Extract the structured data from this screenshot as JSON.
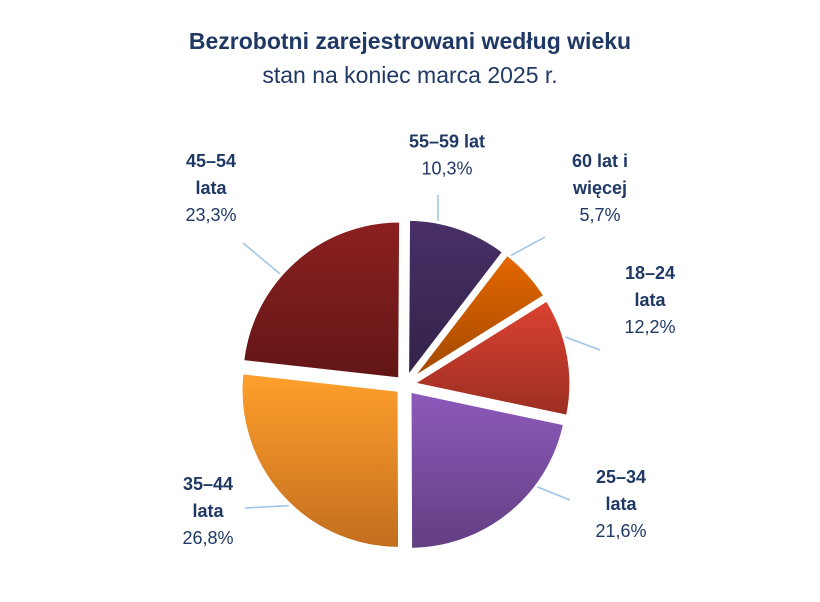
{
  "chart_data": {
    "type": "pie",
    "title": "Bezrobotni zarejestrowani według wieku",
    "subtitle": "stan na koniec marca 2025 r.",
    "slices": [
      {
        "name": "18–24 lata",
        "label_lines": [
          "18–24",
          "lata"
        ],
        "value": 12.2,
        "value_label": "12,2%",
        "color": "#c0392b"
      },
      {
        "name": "25–34 lata",
        "label_lines": [
          "25–34",
          "lata"
        ],
        "value": 21.6,
        "value_label": "21,6%",
        "color": "#7b4ea3"
      },
      {
        "name": "35–44 lata",
        "label_lines": [
          "35–44",
          "lata"
        ],
        "value": 26.8,
        "value_label": "26,8%",
        "color": "#f28a26"
      },
      {
        "name": "45–54 lata",
        "label_lines": [
          "45–54",
          "lata"
        ],
        "value": 23.3,
        "value_label": "23,3%",
        "color": "#7a1c1c"
      },
      {
        "name": "55–59 lat",
        "label_lines": [
          "55–59 lat"
        ],
        "value": 10.3,
        "value_label": "10,3%",
        "color": "#3f2a5a"
      },
      {
        "name": "60 lat i więcej",
        "label_lines": [
          "60 lat i",
          "więcej"
        ],
        "value": 5.7,
        "value_label": "5,7%",
        "color": "#c85a00"
      }
    ],
    "legend": "none",
    "label_line_color": "#9dc3e6"
  }
}
